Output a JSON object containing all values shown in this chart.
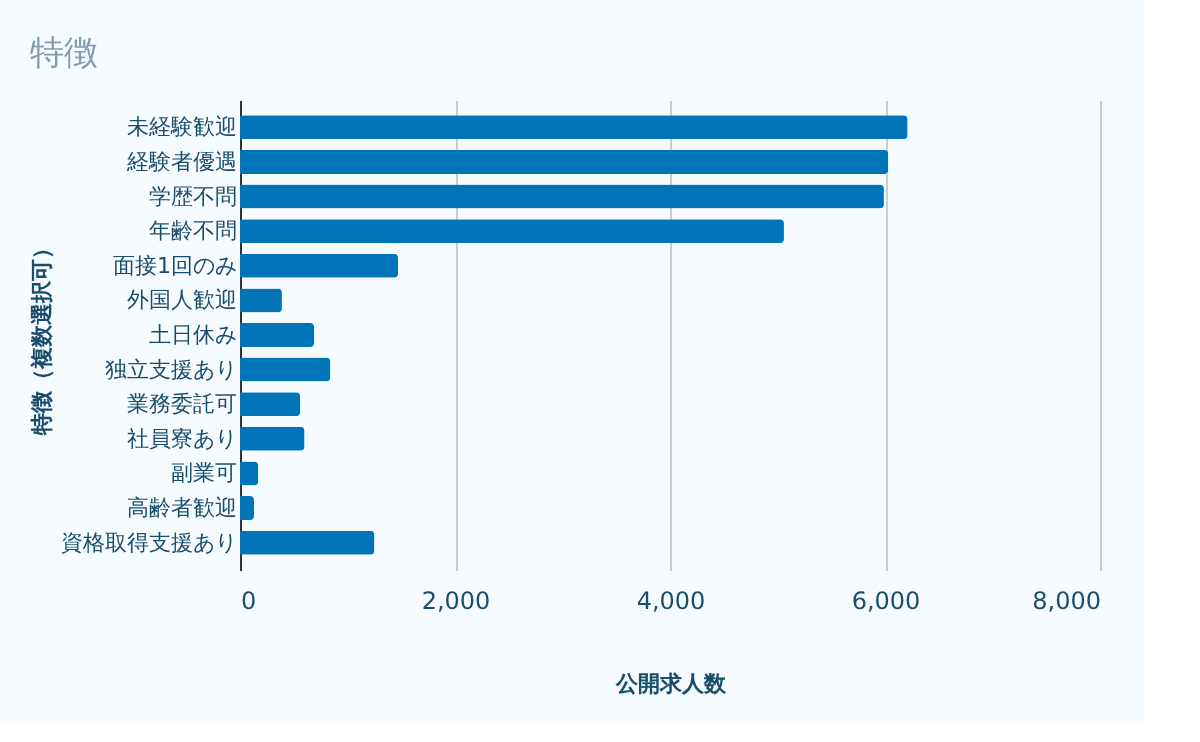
{
  "chart_data": {
    "type": "bar",
    "orientation": "horizontal",
    "title": "特徴",
    "xlabel": "公開求人数",
    "ylabel": "特徴（複数選択可）",
    "categories": [
      "未経験歓迎",
      "経験者優遇",
      "学歴不問",
      "年齢不問",
      "面接1回のみ",
      "外国人歓迎",
      "土日休み",
      "独立支援あり",
      "業務委託可",
      "社員寮あり",
      "副業可",
      "高齢者歓迎",
      "資格取得支援あり"
    ],
    "values": [
      6210,
      6030,
      5990,
      5060,
      1470,
      390,
      690,
      840,
      560,
      600,
      170,
      130,
      1250
    ],
    "color": "#0074b7",
    "xlim": [
      0,
      8000
    ],
    "xticks": [
      0,
      {
        "value": 2000,
        "label": "2,000"
      },
      {
        "value": 4000,
        "label": "4,000"
      },
      {
        "value": 6000,
        "label": "6,000"
      },
      {
        "value": 8000,
        "label": "8,000"
      }
    ],
    "grid": "x"
  }
}
